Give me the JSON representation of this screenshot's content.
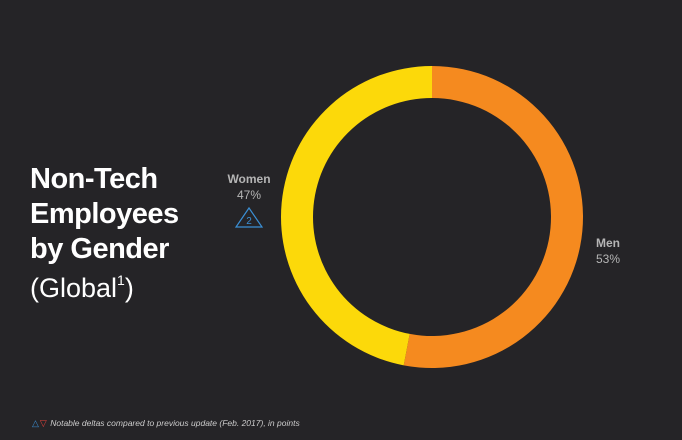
{
  "chart_data": {
    "type": "donut",
    "title": "Non-Tech Employees by Gender",
    "subtitle": "(Global",
    "subtitle_footnote": "1",
    "subtitle_end": ")",
    "categories": [
      "Men",
      "Women"
    ],
    "values": [
      53,
      47
    ],
    "value_labels": [
      "53%",
      "47%"
    ],
    "colors": [
      "#f58a1f",
      "#fcd90a"
    ],
    "deltas": [
      null,
      2
    ],
    "delta_color": "#3b8fd4",
    "legend_note": "Notable deltas compared to previous update (Feb. 2017), in points",
    "legend_up_color": "#3b8fd4",
    "legend_down_color": "#e0413a"
  }
}
